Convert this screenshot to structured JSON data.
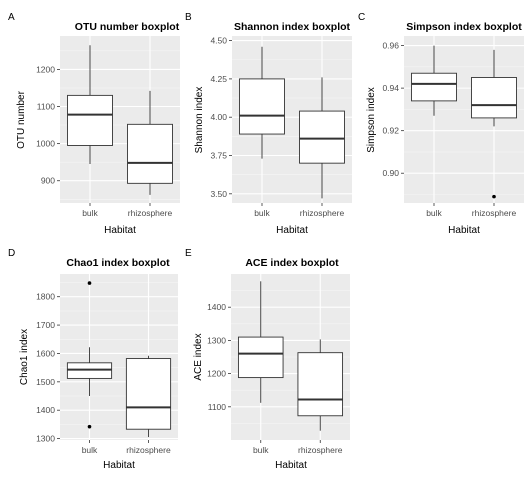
{
  "colors": {
    "panel_background": "#ebebeb",
    "grid_major": "#ffffff",
    "grid_minor": "#f5f5f5",
    "box_fill": "#ffffff",
    "box_line": "#333333",
    "outlier": "#000000",
    "tick_label": "#4d4d4d"
  },
  "chart_data": [
    {
      "id": "A",
      "label": "A",
      "type": "boxplot",
      "title": "OTU number boxplot",
      "xlabel": "Habitat",
      "ylabel": "OTU number",
      "categories": [
        "bulk",
        "rhizosphere"
      ],
      "ylim": [
        840,
        1290
      ],
      "yticks": [
        900,
        1000,
        1100,
        1200
      ],
      "ytick_labels": [
        "900",
        "1000",
        "1100",
        "1200"
      ],
      "boxes": [
        {
          "category": "bulk",
          "lower_whisker": 945,
          "q1": 995,
          "median": 1078,
          "q3": 1130,
          "upper_whisker": 1265,
          "outliers": []
        },
        {
          "category": "rhizosphere",
          "lower_whisker": 862,
          "q1": 893,
          "median": 948,
          "q3": 1052,
          "upper_whisker": 1142,
          "outliers": []
        }
      ]
    },
    {
      "id": "B",
      "label": "B",
      "type": "boxplot",
      "title": "Shannon index boxplot",
      "xlabel": "Habitat",
      "ylabel": "Shannon index",
      "categories": [
        "bulk",
        "rhizosphere"
      ],
      "ylim": [
        3.44,
        4.53
      ],
      "yticks": [
        3.5,
        3.75,
        4.0,
        4.25,
        4.5
      ],
      "ytick_labels": [
        "3.50",
        "3.75",
        "4.00",
        "4.25",
        "4.50"
      ],
      "boxes": [
        {
          "category": "bulk",
          "lower_whisker": 3.73,
          "q1": 3.89,
          "median": 4.01,
          "q3": 4.25,
          "upper_whisker": 4.46,
          "outliers": []
        },
        {
          "category": "rhizosphere",
          "lower_whisker": 3.47,
          "q1": 3.7,
          "median": 3.86,
          "q3": 4.04,
          "upper_whisker": 4.26,
          "outliers": []
        }
      ]
    },
    {
      "id": "C",
      "label": "C",
      "type": "boxplot",
      "title": "Simpson index boxplot",
      "xlabel": "Habitat",
      "ylabel": "Simpson index",
      "categories": [
        "bulk",
        "rhizosphere"
      ],
      "ylim": [
        0.886,
        0.9645
      ],
      "yticks": [
        0.9,
        0.92,
        0.94,
        0.96
      ],
      "ytick_labels": [
        "0.90",
        "0.92",
        "0.94",
        "0.96"
      ],
      "boxes": [
        {
          "category": "bulk",
          "lower_whisker": 0.927,
          "q1": 0.934,
          "median": 0.942,
          "q3": 0.947,
          "upper_whisker": 0.96,
          "outliers": []
        },
        {
          "category": "rhizosphere",
          "lower_whisker": 0.922,
          "q1": 0.926,
          "median": 0.932,
          "q3": 0.945,
          "upper_whisker": 0.958,
          "outliers": [
            0.889
          ]
        }
      ]
    },
    {
      "id": "D",
      "label": "D",
      "type": "boxplot",
      "title": "Chao1 index boxplot",
      "xlabel": "Habitat",
      "ylabel": "Chao1 index",
      "categories": [
        "bulk",
        "rhizosphere"
      ],
      "ylim": [
        1295,
        1880
      ],
      "yticks": [
        1300,
        1400,
        1500,
        1600,
        1700,
        1800
      ],
      "ytick_labels": [
        "1300",
        "1400",
        "1500",
        "1600",
        "1700",
        "1800"
      ],
      "boxes": [
        {
          "category": "bulk",
          "lower_whisker": 1450,
          "q1": 1512,
          "median": 1543,
          "q3": 1567,
          "upper_whisker": 1622,
          "outliers": [
            1848,
            1342
          ]
        },
        {
          "category": "rhizosphere",
          "lower_whisker": 1305,
          "q1": 1333,
          "median": 1410,
          "q3": 1582,
          "upper_whisker": 1592,
          "outliers": []
        }
      ]
    },
    {
      "id": "E",
      "label": "E",
      "type": "boxplot",
      "title": "ACE index boxplot",
      "xlabel": "Habitat",
      "ylabel": "ACE index",
      "categories": [
        "bulk",
        "rhizosphere"
      ],
      "ylim": [
        1000,
        1500
      ],
      "yticks": [
        1100,
        1200,
        1300,
        1400
      ],
      "ytick_labels": [
        "1100",
        "1200",
        "1300",
        "1400"
      ],
      "boxes": [
        {
          "category": "bulk",
          "lower_whisker": 1112,
          "q1": 1188,
          "median": 1260,
          "q3": 1310,
          "upper_whisker": 1478,
          "outliers": []
        },
        {
          "category": "rhizosphere",
          "lower_whisker": 1028,
          "q1": 1073,
          "median": 1122,
          "q3": 1263,
          "upper_whisker": 1303,
          "outliers": []
        }
      ]
    }
  ]
}
